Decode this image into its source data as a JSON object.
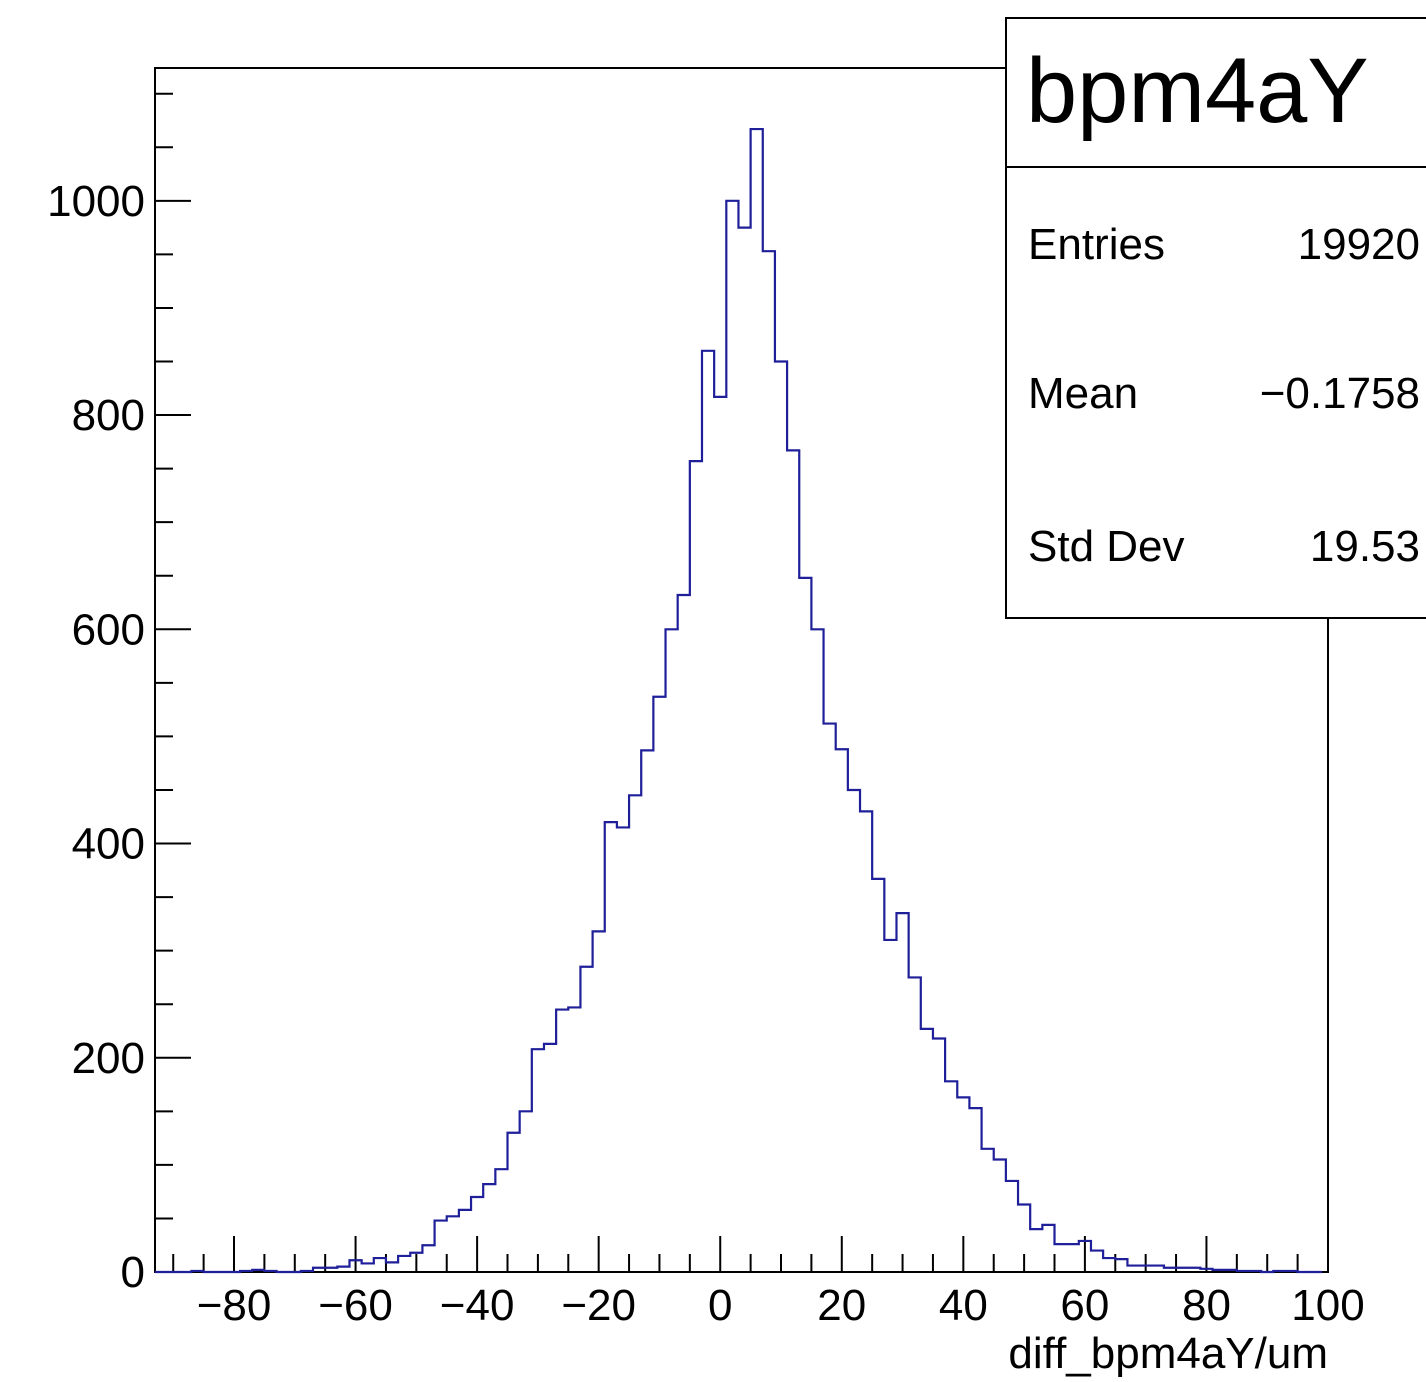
{
  "chart_data": {
    "type": "histogram",
    "title": "",
    "xlabel": "diff_bpm4aY/um",
    "ylabel": "",
    "xlim": [
      -93,
      100
    ],
    "ylim": [
      0,
      1124
    ],
    "x_ticks": [
      -80,
      -60,
      -40,
      -20,
      0,
      20,
      40,
      60,
      80,
      100
    ],
    "y_ticks": [
      0,
      200,
      400,
      600,
      800,
      1000
    ],
    "x_tick_labels": [
      "−80",
      "−60",
      "−40",
      "−20",
      "0",
      "20",
      "40",
      "60",
      "80",
      "100"
    ],
    "y_tick_labels": [
      "0",
      "200",
      "400",
      "600",
      "800",
      "1000"
    ],
    "bin_start": -93,
    "bin_width": 2,
    "values": [
      0,
      0,
      0,
      1,
      0,
      0,
      0,
      1,
      2,
      1,
      0,
      0,
      1,
      4,
      4,
      5,
      11,
      8,
      13,
      9,
      15,
      18,
      25,
      48,
      52,
      58,
      70,
      82,
      96,
      130,
      150,
      208,
      213,
      245,
      247,
      285,
      318,
      420,
      415,
      445,
      487,
      537,
      600,
      632,
      757,
      860,
      817,
      1000,
      975,
      1067,
      953,
      850,
      767,
      648,
      600,
      512,
      488,
      450,
      430,
      367,
      310,
      335,
      275,
      227,
      218,
      178,
      163,
      153,
      115,
      105,
      85,
      63,
      40,
      44,
      26,
      26,
      29,
      20,
      13,
      12,
      6,
      6,
      6,
      4,
      4,
      4,
      3,
      2,
      2,
      1,
      1,
      0,
      1,
      1,
      0,
      0
    ]
  },
  "stats_box": {
    "title": "bpm4aY",
    "rows": [
      {
        "label": "Entries",
        "value": "19920"
      },
      {
        "label": "Mean",
        "value": "−0.1758"
      },
      {
        "label": "Std Dev",
        "value": "19.53"
      }
    ]
  },
  "colors": {
    "histogram_line": "#1f1f9a",
    "axis": "#000000",
    "background": "#ffffff"
  }
}
